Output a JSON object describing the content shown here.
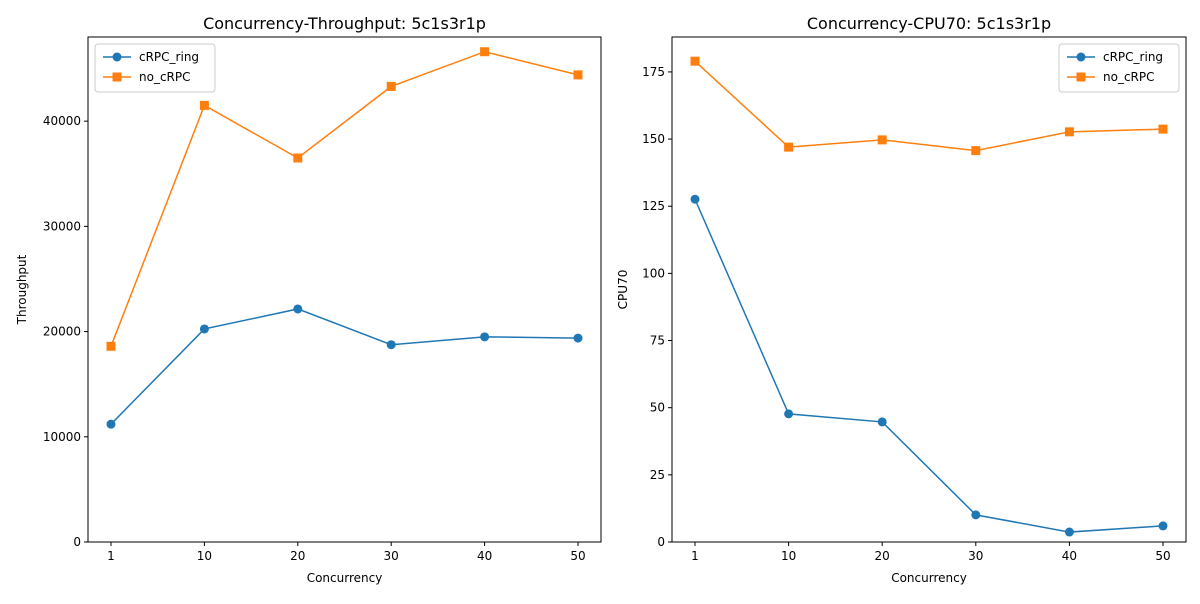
{
  "chart_data": [
    {
      "type": "line",
      "title": "Concurrency-Throughput: 5c1s3r1p",
      "xlabel": "Concurrency",
      "ylabel": "Throughput",
      "x": [
        "1",
        "10",
        "20",
        "30",
        "40",
        "50"
      ],
      "ylim": [
        0,
        48000
      ],
      "yticks": [
        0,
        10000,
        20000,
        30000,
        40000
      ],
      "legend_position": "top-left",
      "grid": false,
      "series": [
        {
          "name": "cRPC_ring",
          "color": "#1f77b4",
          "marker": "circle",
          "values": [
            11200,
            20250,
            22150,
            18750,
            19500,
            19380
          ]
        },
        {
          "name": "no_cRPC",
          "color": "#ff7f0e",
          "marker": "square",
          "values": [
            18600,
            41500,
            36500,
            43300,
            46600,
            44400
          ]
        }
      ]
    },
    {
      "type": "line",
      "title": "Concurrency-CPU70: 5c1s3r1p",
      "xlabel": "Concurrency",
      "ylabel": "CPU70",
      "x": [
        "1",
        "10",
        "20",
        "30",
        "40",
        "50"
      ],
      "ylim": [
        0,
        188
      ],
      "yticks": [
        0,
        25,
        50,
        75,
        100,
        125,
        150,
        175
      ],
      "legend_position": "top-right",
      "grid": false,
      "series": [
        {
          "name": "cRPC_ring",
          "color": "#1f77b4",
          "marker": "circle",
          "values": [
            127.6,
            47.7,
            44.7,
            10.1,
            3.7,
            6.0
          ]
        },
        {
          "name": "no_cRPC",
          "color": "#ff7f0e",
          "marker": "square",
          "values": [
            179,
            147,
            149.7,
            145.7,
            152.7,
            153.7
          ]
        }
      ]
    }
  ]
}
